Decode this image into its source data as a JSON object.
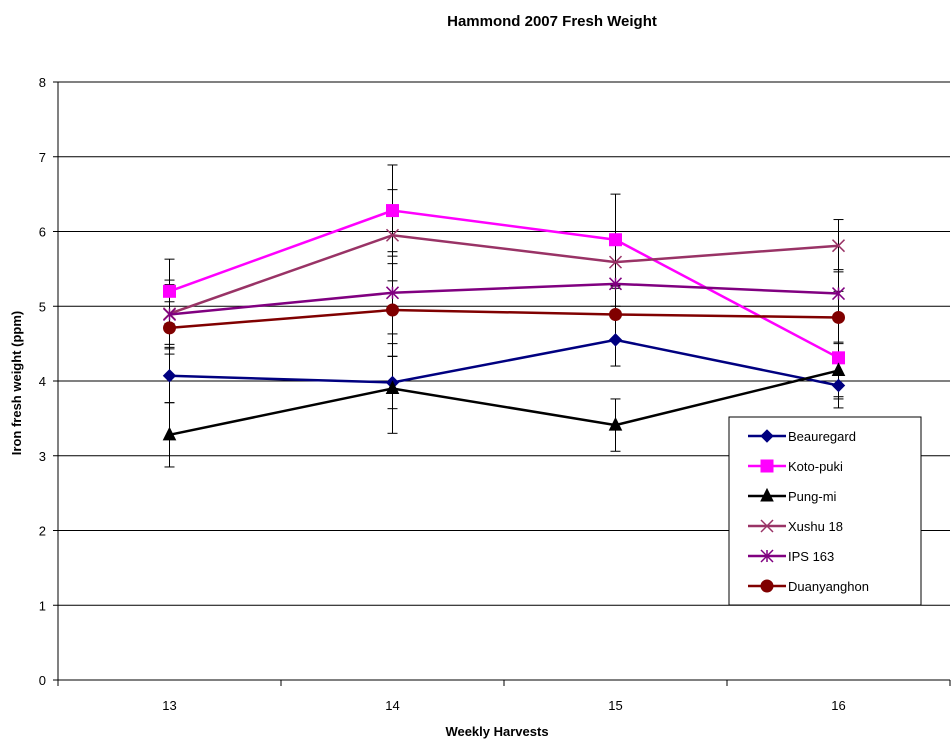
{
  "chart_data": {
    "type": "line",
    "title": "Hammond 2007 Fresh Weight",
    "xlabel": "Weekly Harvests",
    "ylabel": "Iron fresh weight (ppm)",
    "categories": [
      "13",
      "14",
      "15",
      "16"
    ],
    "ylim": [
      0,
      8
    ],
    "yticks": [
      "0",
      "1",
      "2",
      "3",
      "4",
      "5",
      "6",
      "7",
      "8"
    ],
    "grid": true,
    "legend_position": "right",
    "error_bars": true,
    "series": [
      {
        "name": "Beauregard",
        "color": "#000080",
        "marker": "diamond",
        "values": [
          4.07,
          3.98,
          4.55,
          3.94
        ],
        "errors": [
          0.36,
          0.35,
          0.35,
          0.3
        ]
      },
      {
        "name": "Koto-puki",
        "color": "#FF00FF",
        "marker": "square",
        "values": [
          5.2,
          6.28,
          5.89,
          4.31
        ],
        "errors": [
          0.43,
          0.61,
          0.61,
          0.52
        ]
      },
      {
        "name": "Pung-mi",
        "color": "#000000",
        "marker": "triangle",
        "values": [
          3.28,
          3.9,
          3.41,
          4.14
        ],
        "errors": [
          0.43,
          0.6,
          0.35,
          0.38
        ]
      },
      {
        "name": "Xushu 18",
        "color": "#993366",
        "marker": "x",
        "values": [
          4.9,
          5.95,
          5.59,
          5.81
        ],
        "errors": [
          0.45,
          0.61,
          0.32,
          0.35
        ]
      },
      {
        "name": "IPS 163",
        "color": "#800080",
        "marker": "star",
        "values": [
          4.89,
          5.18,
          5.3,
          5.17
        ],
        "errors": [
          0.4,
          0.55,
          0.3,
          0.32
        ]
      },
      {
        "name": "Duanyanghon",
        "color": "#800000",
        "marker": "circle",
        "values": [
          4.71,
          4.95,
          4.89,
          4.85
        ],
        "errors": [
          0.35,
          0.62,
          0.35,
          0.35
        ]
      }
    ]
  }
}
